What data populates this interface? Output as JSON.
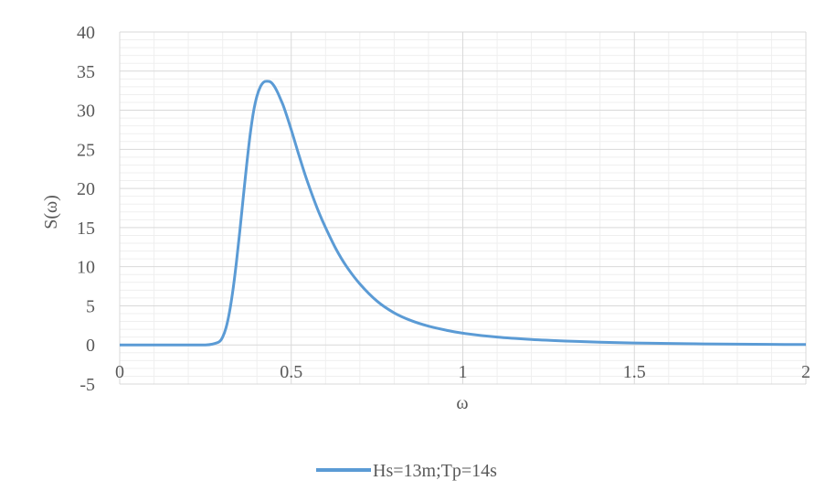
{
  "chart_data": {
    "type": "line",
    "title": "",
    "xlabel": "ω",
    "ylabel": "S(ω)",
    "xlim": [
      0,
      2
    ],
    "ylim": [
      -5,
      40
    ],
    "x_ticks": [
      0,
      0.5,
      1,
      1.5,
      2
    ],
    "x_tick_labels": [
      "0",
      "0.5",
      "1",
      "1.5",
      "2"
    ],
    "y_ticks": [
      -5,
      0,
      5,
      10,
      15,
      20,
      25,
      30,
      35,
      40
    ],
    "y_tick_labels": [
      "-5",
      "0",
      "5",
      "10",
      "15",
      "20",
      "25",
      "30",
      "35",
      "40"
    ],
    "grid": true,
    "legend_position": "bottom",
    "series": [
      {
        "name": "Hs=13m;Tp=14s",
        "color": "#5b9bd5",
        "x": [
          0,
          0.1,
          0.2,
          0.25,
          0.27,
          0.29,
          0.3,
          0.31,
          0.32,
          0.33,
          0.34,
          0.35,
          0.36,
          0.37,
          0.38,
          0.39,
          0.4,
          0.41,
          0.42,
          0.43,
          0.44,
          0.45,
          0.46,
          0.47,
          0.48,
          0.5,
          0.52,
          0.54,
          0.56,
          0.58,
          0.6,
          0.63,
          0.66,
          0.7,
          0.75,
          0.8,
          0.85,
          0.9,
          0.95,
          1.0,
          1.1,
          1.2,
          1.3,
          1.4,
          1.5,
          1.6,
          1.7,
          1.8,
          1.9,
          2.0
        ],
        "y": [
          0,
          0,
          0,
          0,
          0.1,
          0.4,
          1.0,
          2.2,
          4.2,
          7.0,
          10.5,
          14.5,
          18.8,
          23.0,
          26.8,
          29.8,
          31.8,
          33.0,
          33.6,
          33.7,
          33.6,
          33.1,
          32.3,
          31.3,
          30.2,
          27.5,
          24.6,
          21.8,
          19.3,
          17.0,
          15.0,
          12.3,
          10.1,
          7.8,
          5.6,
          4.1,
          3.1,
          2.4,
          1.9,
          1.5,
          1.0,
          0.7,
          0.5,
          0.35,
          0.25,
          0.18,
          0.13,
          0.1,
          0.07,
          0.05
        ]
      }
    ]
  }
}
